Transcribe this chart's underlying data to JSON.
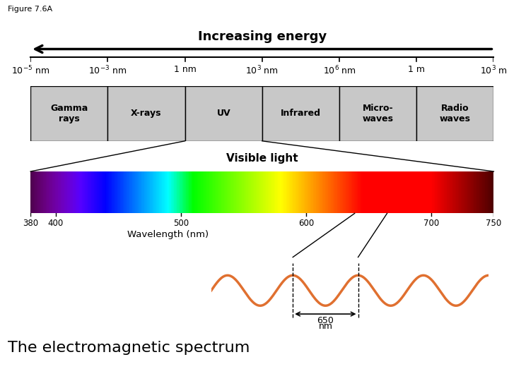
{
  "figure_label": "Figure 7.6A",
  "title": "Increasing energy",
  "subtitle": "The electromagnetic spectrum",
  "spectrum_title": "Visible light",
  "wavelength_label": "Wavelength (nm)",
  "scale_labels": [
    "$10^{-5}$ nm",
    "$10^{-3}$ nm",
    "1 nm",
    "$10^{3}$ nm",
    "$10^{6}$ nm",
    "1 m",
    "$10^{3}$ m"
  ],
  "band_names": [
    "Gamma\nrays",
    "X-rays",
    "UV",
    "Infrared",
    "Micro-\nwaves",
    "Radio\nwaves"
  ],
  "tick_wavelengths": [
    380,
    400,
    500,
    600,
    700,
    750
  ],
  "band_color": "#c8c8c8",
  "wave_color": "#e07030",
  "background_color": "#ffffff",
  "arrow_lw": 2.5,
  "band_font_size": 9,
  "scale_font_size": 9,
  "title_font_size": 13,
  "vis_light_font_size": 11,
  "subtitle_font_size": 16,
  "tick_font_size": 8.5,
  "wavelength_label_font_size": 9.5
}
